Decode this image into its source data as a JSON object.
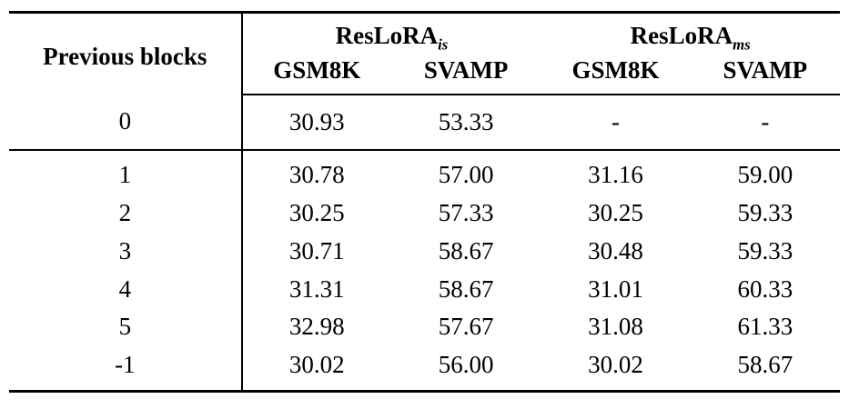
{
  "table": {
    "col_header": "Previous blocks",
    "groups": [
      {
        "base": "ResLoRA",
        "sub": "is"
      },
      {
        "base": "ResLoRA",
        "sub": "ms"
      }
    ],
    "sub_headers": [
      "GSM8K",
      "SVAMP",
      "GSM8K",
      "SVAMP"
    ],
    "rows": [
      {
        "label": "0",
        "values": [
          "30.93",
          "53.33",
          "-",
          "-"
        ],
        "separator_after": true
      },
      {
        "label": "1",
        "values": [
          "30.78",
          "57.00",
          "31.16",
          "59.00"
        ]
      },
      {
        "label": "2",
        "values": [
          "30.25",
          "57.33",
          "30.25",
          "59.33"
        ]
      },
      {
        "label": "3",
        "values": [
          "30.71",
          "58.67",
          "30.48",
          "59.33"
        ]
      },
      {
        "label": "4",
        "values": [
          "31.31",
          "58.67",
          "31.01",
          "60.33"
        ]
      },
      {
        "label": "5",
        "values": [
          "32.98",
          "57.67",
          "31.08",
          "61.33"
        ]
      },
      {
        "label": "-1",
        "values": [
          "30.02",
          "56.00",
          "30.02",
          "58.67"
        ]
      }
    ]
  }
}
